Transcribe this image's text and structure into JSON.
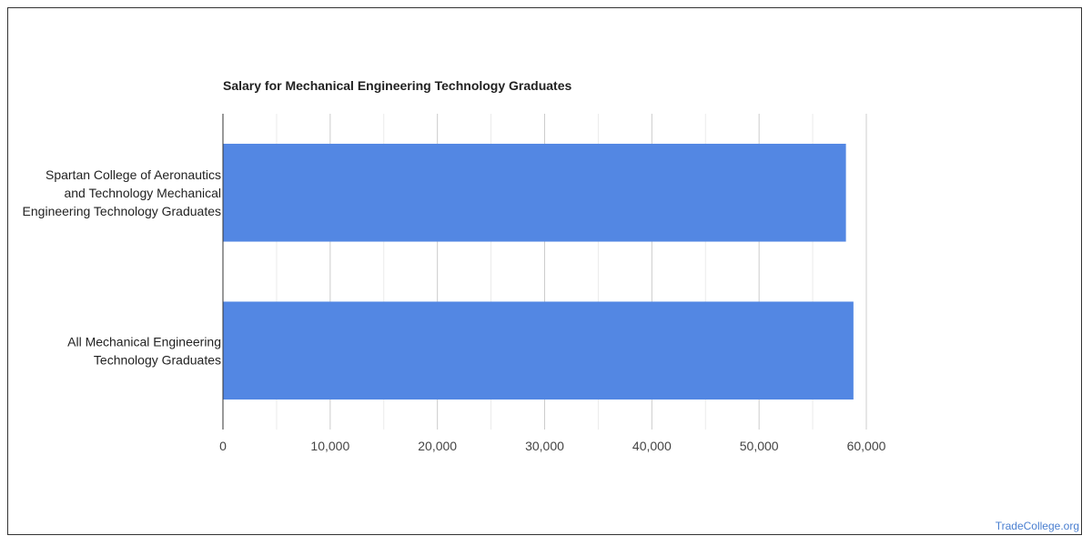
{
  "chart_data": {
    "type": "bar",
    "orientation": "horizontal",
    "title": "Salary for Mechanical Engineering Technology Graduates",
    "categories": [
      [
        "Spartan College of Aeronautics",
        "and Technology Mechanical",
        "Engineering Technology Graduates"
      ],
      [
        "All Mechanical Engineering",
        "Technology Graduates"
      ]
    ],
    "values": [
      58100,
      58800
    ],
    "xlim": [
      0,
      60000
    ],
    "xticks": [
      0,
      10000,
      20000,
      30000,
      40000,
      50000,
      60000
    ],
    "xtick_labels": [
      "0",
      "10,000",
      "20,000",
      "30,000",
      "40,000",
      "50,000",
      "60,000"
    ],
    "xlabel": "",
    "ylabel": "",
    "grid": true,
    "legend": "none",
    "colors": {
      "bar": "#5387e3",
      "major_grid": "#cccccc",
      "minor_grid": "#ebebeb",
      "axis": "#333333"
    }
  },
  "footer": {
    "credit": "TradeCollege.org"
  }
}
